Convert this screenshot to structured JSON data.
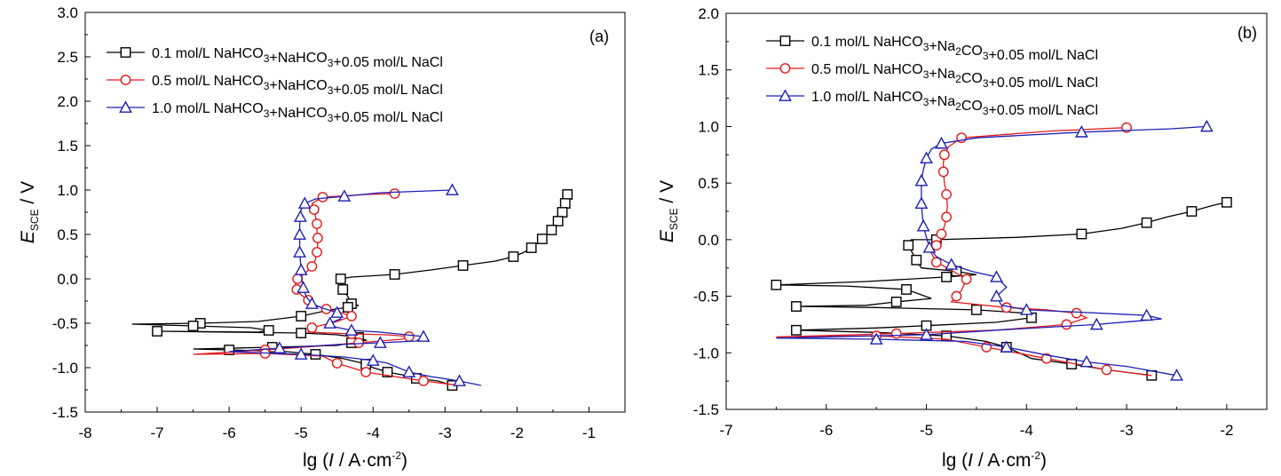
{
  "chart_data": [
    {
      "type": "line",
      "panel_label": "(a)",
      "xlabel": "lg (I / A·cm⁻²)",
      "ylabel": "E_SCE / V",
      "xlim": [
        -8,
        -0.5
      ],
      "ylim": [
        -1.5,
        3.0
      ],
      "xticks": [
        "-8",
        "-7",
        "-6",
        "-5",
        "-4",
        "-3",
        "-2",
        "-1"
      ],
      "yticks": [
        "-1.5",
        "-1.0",
        "-0.5",
        "0.0",
        "0.5",
        "1.0",
        "1.5",
        "2.0",
        "2.5",
        "3.0"
      ],
      "legend_position": "top-left",
      "grid": false,
      "series": [
        {
          "name": "0.1 mol/L NaHCO3+NaHCO3+0.05 mol/L NaCl",
          "color": "#000000",
          "marker": "square",
          "points": [
            [
              -1.3,
              0.95
            ],
            [
              -1.32,
              0.9
            ],
            [
              -1.33,
              0.85
            ],
            [
              -1.35,
              0.8
            ],
            [
              -1.37,
              0.75
            ],
            [
              -1.4,
              0.7
            ],
            [
              -1.43,
              0.65
            ],
            [
              -1.47,
              0.6
            ],
            [
              -1.52,
              0.55
            ],
            [
              -1.58,
              0.5
            ],
            [
              -1.65,
              0.45
            ],
            [
              -1.72,
              0.4
            ],
            [
              -1.8,
              0.35
            ],
            [
              -1.9,
              0.3
            ],
            [
              -2.05,
              0.25
            ],
            [
              -2.3,
              0.2
            ],
            [
              -2.75,
              0.15
            ],
            [
              -3.2,
              0.1
            ],
            [
              -3.7,
              0.05
            ],
            [
              -4.3,
              0.02
            ],
            [
              -4.45,
              0.0
            ],
            [
              -4.45,
              -0.05
            ],
            [
              -4.42,
              -0.12
            ],
            [
              -4.35,
              -0.2
            ],
            [
              -4.3,
              -0.28
            ],
            [
              -4.2,
              -0.3
            ],
            [
              -4.35,
              -0.32
            ],
            [
              -4.6,
              -0.35
            ],
            [
              -5.0,
              -0.42
            ],
            [
              -5.6,
              -0.48
            ],
            [
              -6.4,
              -0.5
            ],
            [
              -7.35,
              -0.51
            ],
            [
              -6.5,
              -0.53
            ],
            [
              -5.7,
              -0.55
            ],
            [
              -5.45,
              -0.58
            ],
            [
              -5.6,
              -0.6
            ],
            [
              -7.0,
              -0.59
            ],
            [
              -6.0,
              -0.6
            ],
            [
              -5.0,
              -0.61
            ],
            [
              -4.5,
              -0.63
            ],
            [
              -4.2,
              -0.66
            ],
            [
              -4.1,
              -0.69
            ],
            [
              -4.3,
              -0.72
            ],
            [
              -4.5,
              -0.75
            ],
            [
              -5.4,
              -0.77
            ],
            [
              -6.5,
              -0.79
            ],
            [
              -6.0,
              -0.8
            ],
            [
              -5.2,
              -0.82
            ],
            [
              -4.8,
              -0.85
            ],
            [
              -4.4,
              -0.9
            ],
            [
              -4.1,
              -0.96
            ],
            [
              -4.0,
              -1.0
            ],
            [
              -3.8,
              -1.05
            ],
            [
              -3.6,
              -1.08
            ],
            [
              -3.4,
              -1.12
            ],
            [
              -3.1,
              -1.15
            ],
            [
              -2.9,
              -1.2
            ]
          ]
        },
        {
          "name": "0.5 mol/L NaHCO3+NaHCO3+0.05 mol/L NaCl",
          "color": "#e3191c",
          "marker": "circle",
          "points": [
            [
              -3.7,
              0.96
            ],
            [
              -4.1,
              0.95
            ],
            [
              -4.7,
              0.92
            ],
            [
              -4.85,
              0.85
            ],
            [
              -4.82,
              0.78
            ],
            [
              -4.8,
              0.7
            ],
            [
              -4.78,
              0.62
            ],
            [
              -4.78,
              0.54
            ],
            [
              -4.77,
              0.46
            ],
            [
              -4.77,
              0.38
            ],
            [
              -4.78,
              0.3
            ],
            [
              -4.8,
              0.22
            ],
            [
              -4.85,
              0.14
            ],
            [
              -4.95,
              0.06
            ],
            [
              -5.05,
              0.0
            ],
            [
              -5.08,
              -0.06
            ],
            [
              -5.06,
              -0.12
            ],
            [
              -5.0,
              -0.18
            ],
            [
              -4.9,
              -0.24
            ],
            [
              -4.8,
              -0.3
            ],
            [
              -4.65,
              -0.34
            ],
            [
              -4.45,
              -0.38
            ],
            [
              -4.3,
              -0.42
            ],
            [
              -4.5,
              -0.48
            ],
            [
              -4.85,
              -0.55
            ],
            [
              -4.9,
              -0.6
            ],
            [
              -4.3,
              -0.62
            ],
            [
              -3.8,
              -0.63
            ],
            [
              -3.5,
              -0.65
            ],
            [
              -3.6,
              -0.68
            ],
            [
              -4.2,
              -0.72
            ],
            [
              -4.8,
              -0.76
            ],
            [
              -5.5,
              -0.8
            ],
            [
              -6.5,
              -0.85
            ],
            [
              -5.5,
              -0.84
            ],
            [
              -4.7,
              -0.87
            ],
            [
              -4.5,
              -0.95
            ],
            [
              -4.3,
              -1.0
            ],
            [
              -4.1,
              -1.05
            ],
            [
              -3.7,
              -1.1
            ],
            [
              -3.3,
              -1.15
            ],
            [
              -2.8,
              -1.2
            ]
          ]
        },
        {
          "name": "1.0 mol/L NaHCO3+NaHCO3+0.05 mol/L NaCl",
          "color": "#1e1eb4",
          "marker": "triangle",
          "points": [
            [
              -2.9,
              1.0
            ],
            [
              -3.9,
              0.97
            ],
            [
              -4.4,
              0.93
            ],
            [
              -4.8,
              0.9
            ],
            [
              -4.95,
              0.85
            ],
            [
              -5.0,
              0.78
            ],
            [
              -5.01,
              0.7
            ],
            [
              -5.02,
              0.6
            ],
            [
              -5.02,
              0.5
            ],
            [
              -5.02,
              0.4
            ],
            [
              -5.02,
              0.3
            ],
            [
              -5.01,
              0.2
            ],
            [
              -5.0,
              0.1
            ],
            [
              -4.99,
              0.0
            ],
            [
              -4.97,
              -0.1
            ],
            [
              -4.93,
              -0.2
            ],
            [
              -4.85,
              -0.28
            ],
            [
              -4.7,
              -0.33
            ],
            [
              -4.5,
              -0.38
            ],
            [
              -4.45,
              -0.45
            ],
            [
              -4.6,
              -0.5
            ],
            [
              -4.6,
              -0.53
            ],
            [
              -4.3,
              -0.58
            ],
            [
              -3.9,
              -0.6
            ],
            [
              -3.3,
              -0.65
            ],
            [
              -3.4,
              -0.7
            ],
            [
              -3.9,
              -0.72
            ],
            [
              -4.5,
              -0.74
            ],
            [
              -5.3,
              -0.78
            ],
            [
              -6.0,
              -0.82
            ],
            [
              -5.0,
              -0.85
            ],
            [
              -4.4,
              -0.88
            ],
            [
              -4.0,
              -0.92
            ],
            [
              -3.8,
              -0.95
            ],
            [
              -3.5,
              -1.05
            ],
            [
              -3.2,
              -1.1
            ],
            [
              -2.8,
              -1.15
            ],
            [
              -2.5,
              -1.2
            ]
          ]
        }
      ]
    },
    {
      "type": "line",
      "panel_label": "(b)",
      "xlabel": "lg (I / A·cm⁻²)",
      "ylabel": "E_SCE / V",
      "xlim": [
        -7,
        -1.6
      ],
      "ylim": [
        -1.5,
        2.0
      ],
      "xticks": [
        "-7",
        "-6",
        "-5",
        "-4",
        "-3",
        "-2"
      ],
      "yticks": [
        "-1.5",
        "-1.0",
        "-0.5",
        "0.0",
        "0.5",
        "1.0",
        "1.5",
        "2.0"
      ],
      "legend_position": "top-left",
      "grid": false,
      "series": [
        {
          "name": "0.1 mol/L NaHCO3+Na2CO3+0.05 mol/L NaCl",
          "color": "#000000",
          "marker": "square",
          "points": [
            [
              -2.0,
              0.33
            ],
            [
              -2.15,
              0.3
            ],
            [
              -2.35,
              0.25
            ],
            [
              -2.6,
              0.2
            ],
            [
              -2.8,
              0.15
            ],
            [
              -3.05,
              0.1
            ],
            [
              -3.45,
              0.05
            ],
            [
              -4.1,
              0.02
            ],
            [
              -4.9,
              0.0
            ],
            [
              -5.15,
              0.0
            ],
            [
              -5.18,
              -0.05
            ],
            [
              -5.15,
              -0.1
            ],
            [
              -5.1,
              -0.18
            ],
            [
              -5.05,
              -0.25
            ],
            [
              -4.7,
              -0.28
            ],
            [
              -4.5,
              -0.31
            ],
            [
              -4.8,
              -0.33
            ],
            [
              -5.6,
              -0.37
            ],
            [
              -6.5,
              -0.4
            ],
            [
              -5.8,
              -0.41
            ],
            [
              -5.2,
              -0.44
            ],
            [
              -4.95,
              -0.52
            ],
            [
              -5.3,
              -0.55
            ],
            [
              -5.6,
              -0.58
            ],
            [
              -6.3,
              -0.59
            ],
            [
              -5.5,
              -0.6
            ],
            [
              -4.5,
              -0.62
            ],
            [
              -4.0,
              -0.65
            ],
            [
              -3.95,
              -0.69
            ],
            [
              -4.3,
              -0.73
            ],
            [
              -5.0,
              -0.76
            ],
            [
              -5.5,
              -0.78
            ],
            [
              -6.3,
              -0.8
            ],
            [
              -5.5,
              -0.82
            ],
            [
              -4.8,
              -0.85
            ],
            [
              -4.4,
              -0.9
            ],
            [
              -4.2,
              -0.95
            ],
            [
              -3.95,
              -1.05
            ],
            [
              -3.55,
              -1.1
            ],
            [
              -3.2,
              -1.15
            ],
            [
              -2.75,
              -1.2
            ]
          ]
        },
        {
          "name": "0.5 mol/L NaHCO3+Na2CO3+0.05 mol/L NaCl",
          "color": "#e3191c",
          "marker": "circle",
          "points": [
            [
              -3.0,
              0.99
            ],
            [
              -3.75,
              0.96
            ],
            [
              -4.65,
              0.9
            ],
            [
              -4.78,
              0.82
            ],
            [
              -4.82,
              0.75
            ],
            [
              -4.83,
              0.68
            ],
            [
              -4.83,
              0.6
            ],
            [
              -4.82,
              0.5
            ],
            [
              -4.8,
              0.4
            ],
            [
              -4.79,
              0.3
            ],
            [
              -4.8,
              0.2
            ],
            [
              -4.82,
              0.12
            ],
            [
              -4.85,
              0.05
            ],
            [
              -4.85,
              0.0
            ],
            [
              -4.9,
              -0.05
            ],
            [
              -4.95,
              -0.12
            ],
            [
              -4.9,
              -0.2
            ],
            [
              -4.75,
              -0.27
            ],
            [
              -4.6,
              -0.35
            ],
            [
              -4.65,
              -0.45
            ],
            [
              -4.7,
              -0.5
            ],
            [
              -4.75,
              -0.55
            ],
            [
              -4.2,
              -0.6
            ],
            [
              -3.8,
              -0.62
            ],
            [
              -3.5,
              -0.65
            ],
            [
              -3.4,
              -0.69
            ],
            [
              -3.6,
              -0.75
            ],
            [
              -4.3,
              -0.8
            ],
            [
              -5.3,
              -0.83
            ],
            [
              -6.5,
              -0.86
            ],
            [
              -5.5,
              -0.85
            ],
            [
              -4.8,
              -0.88
            ],
            [
              -4.4,
              -0.95
            ],
            [
              -4.1,
              -1.0
            ],
            [
              -3.8,
              -1.05
            ],
            [
              -3.5,
              -1.1
            ],
            [
              -3.2,
              -1.15
            ],
            [
              -2.75,
              -1.2
            ]
          ]
        },
        {
          "name": "1.0 mol/L NaHCO3+Na2CO3+0.05 mol/L NaCl",
          "color": "#1e1eb4",
          "marker": "triangle",
          "points": [
            [
              -2.2,
              1.0
            ],
            [
              -2.55,
              0.98
            ],
            [
              -3.45,
              0.95
            ],
            [
              -4.5,
              0.9
            ],
            [
              -4.85,
              0.85
            ],
            [
              -4.95,
              0.8
            ],
            [
              -5.0,
              0.72
            ],
            [
              -5.03,
              0.62
            ],
            [
              -5.05,
              0.52
            ],
            [
              -5.05,
              0.42
            ],
            [
              -5.05,
              0.32
            ],
            [
              -5.04,
              0.22
            ],
            [
              -5.03,
              0.12
            ],
            [
              -5.0,
              0.02
            ],
            [
              -4.97,
              -0.07
            ],
            [
              -4.9,
              -0.15
            ],
            [
              -4.75,
              -0.22
            ],
            [
              -4.55,
              -0.28
            ],
            [
              -4.3,
              -0.33
            ],
            [
              -4.2,
              -0.42
            ],
            [
              -4.3,
              -0.5
            ],
            [
              -4.25,
              -0.58
            ],
            [
              -4.0,
              -0.62
            ],
            [
              -3.5,
              -0.64
            ],
            [
              -2.8,
              -0.67
            ],
            [
              -2.65,
              -0.7
            ],
            [
              -3.3,
              -0.75
            ],
            [
              -4.3,
              -0.8
            ],
            [
              -5.0,
              -0.84
            ],
            [
              -6.5,
              -0.87
            ],
            [
              -5.5,
              -0.88
            ],
            [
              -4.6,
              -0.9
            ],
            [
              -4.2,
              -0.95
            ],
            [
              -3.8,
              -1.02
            ],
            [
              -3.4,
              -1.08
            ],
            [
              -3.0,
              -1.12
            ],
            [
              -2.5,
              -1.2
            ]
          ]
        }
      ]
    }
  ]
}
